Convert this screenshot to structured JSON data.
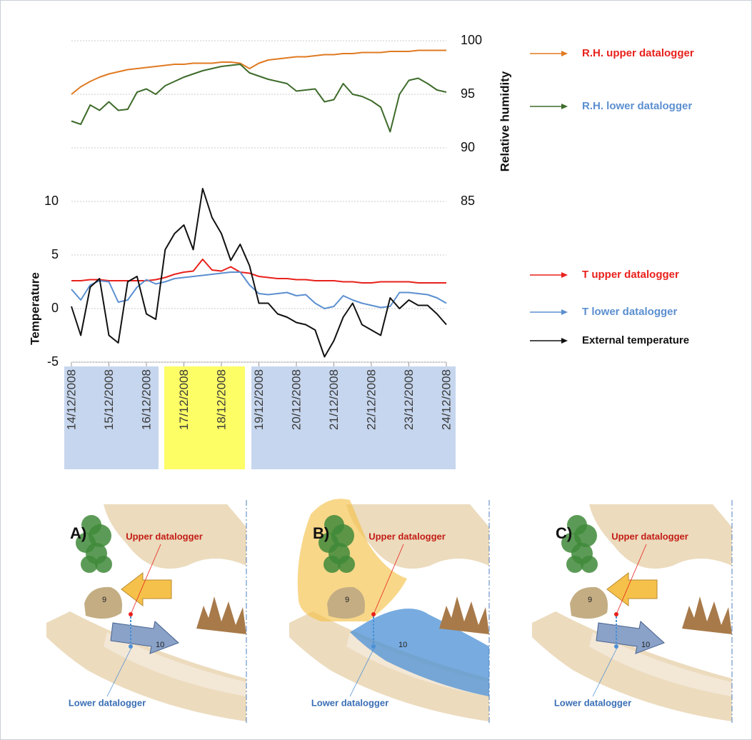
{
  "chart_data": {
    "type": "line",
    "y_label": "Temperature",
    "y2_label": "Relative humidity",
    "x": [
      0,
      0.25,
      0.5,
      0.75,
      1,
      1.25,
      1.5,
      1.75,
      2,
      2.25,
      2.5,
      2.75,
      3,
      3.25,
      3.5,
      3.75,
      4,
      4.25,
      4.5,
      4.75,
      5,
      5.25,
      5.5,
      5.75,
      6,
      6.25,
      6.5,
      6.75,
      7,
      7.25,
      7.5,
      7.75,
      8,
      8.25,
      8.5,
      8.75,
      9,
      9.25,
      9.5,
      9.75,
      10
    ],
    "xlim": [
      0,
      10
    ],
    "xticks": [
      {
        "value": 0,
        "label": "14/12/2008"
      },
      {
        "value": 1,
        "label": "15/12/2008"
      },
      {
        "value": 2,
        "label": "16/12/2008"
      },
      {
        "value": 3,
        "label": "17/12/2008"
      },
      {
        "value": 4,
        "label": "18/12/2008"
      },
      {
        "value": 5,
        "label": "19/12/2008"
      },
      {
        "value": 6,
        "label": "20/12/2008"
      },
      {
        "value": 7,
        "label": "21/12/2008"
      },
      {
        "value": 8,
        "label": "22/12/2008"
      },
      {
        "value": 9,
        "label": "23/12/2008"
      },
      {
        "value": 10,
        "label": "24/12/2008"
      }
    ],
    "ylim": [
      -5,
      25
    ],
    "yticks": [
      -5,
      0,
      5,
      10
    ],
    "y2lim": [
      70,
      100
    ],
    "y2ticks": [
      85,
      90,
      95,
      100
    ],
    "grid": true,
    "series": [
      {
        "name": "R.H. upper datalogger",
        "color": "#e07a22",
        "legend_color": "#e8211c",
        "axis": "y2",
        "values": [
          95.0,
          95.7,
          96.2,
          96.6,
          96.9,
          97.1,
          97.3,
          97.4,
          97.5,
          97.6,
          97.7,
          97.8,
          97.8,
          97.9,
          97.9,
          97.9,
          98.0,
          98.0,
          97.9,
          97.4,
          97.9,
          98.2,
          98.3,
          98.4,
          98.5,
          98.5,
          98.6,
          98.7,
          98.7,
          98.8,
          98.8,
          98.9,
          98.9,
          98.9,
          99.0,
          99.0,
          99.0,
          99.1,
          99.1,
          99.1,
          99.1
        ]
      },
      {
        "name": "R.H. lower datalogger",
        "color": "#3e6b2a",
        "legend_color": "#5b8fd0",
        "axis": "y2",
        "values": [
          92.5,
          92.2,
          94.0,
          93.5,
          94.3,
          93.5,
          93.6,
          95.2,
          95.5,
          95.0,
          95.8,
          96.2,
          96.6,
          96.9,
          97.2,
          97.4,
          97.6,
          97.7,
          97.8,
          97.0,
          96.7,
          96.4,
          96.2,
          96.0,
          95.3,
          95.4,
          95.5,
          94.3,
          94.5,
          96.0,
          95.0,
          94.8,
          94.4,
          93.8,
          91.5,
          95.0,
          96.3,
          96.5,
          96.0,
          95.4,
          95.2
        ]
      },
      {
        "name": "T upper datalogger",
        "color": "#e8211c",
        "legend_color": "#e8211c",
        "values": [
          2.6,
          2.6,
          2.7,
          2.7,
          2.6,
          2.6,
          2.6,
          2.6,
          2.6,
          2.7,
          2.9,
          3.2,
          3.4,
          3.5,
          4.6,
          3.6,
          3.5,
          3.9,
          3.4,
          3.3,
          3.0,
          2.9,
          2.8,
          2.8,
          2.7,
          2.7,
          2.6,
          2.6,
          2.6,
          2.5,
          2.5,
          2.4,
          2.4,
          2.5,
          2.5,
          2.5,
          2.5,
          2.4,
          2.4,
          2.4,
          2.4
        ]
      },
      {
        "name": "T lower datalogger",
        "color": "#5b8fd0",
        "legend_color": "#5b8fd0",
        "values": [
          1.8,
          0.8,
          2.2,
          2.6,
          2.5,
          0.6,
          0.8,
          2.0,
          2.7,
          2.3,
          2.5,
          2.8,
          2.9,
          3.0,
          3.1,
          3.2,
          3.3,
          3.4,
          3.4,
          2.2,
          1.4,
          1.3,
          1.4,
          1.5,
          1.2,
          1.3,
          0.5,
          0.0,
          0.2,
          1.2,
          0.8,
          0.5,
          0.3,
          0.1,
          0.2,
          1.5,
          1.5,
          1.4,
          1.3,
          1.0,
          0.5
        ]
      },
      {
        "name": "External temperature",
        "color": "#111111",
        "legend_color": "#111111",
        "values": [
          0.2,
          -2.5,
          2.0,
          2.8,
          -2.5,
          -3.2,
          2.5,
          3.0,
          -0.5,
          -1.0,
          5.5,
          7.0,
          7.8,
          5.5,
          11.2,
          8.5,
          7.0,
          4.5,
          6.0,
          4.0,
          0.5,
          0.5,
          -0.5,
          -0.8,
          -1.3,
          -1.5,
          -2.0,
          -4.5,
          -3.0,
          -0.8,
          0.5,
          -1.5,
          -2.0,
          -2.5,
          1.0,
          0.0,
          0.8,
          0.3,
          0.3,
          -0.5,
          -1.5
        ]
      }
    ]
  },
  "diagrams": [
    {
      "label": "A)",
      "upper": "Upper datalogger",
      "lower": "Lower datalogger",
      "points": [
        "9",
        "10"
      ]
    },
    {
      "label": "B)",
      "upper": "Upper datalogger",
      "lower": "Lower datalogger",
      "points": [
        "9",
        "10"
      ]
    },
    {
      "label": "C)",
      "upper": "Upper datalogger",
      "lower": "Lower datalogger",
      "points": [
        "9",
        "10"
      ]
    }
  ]
}
